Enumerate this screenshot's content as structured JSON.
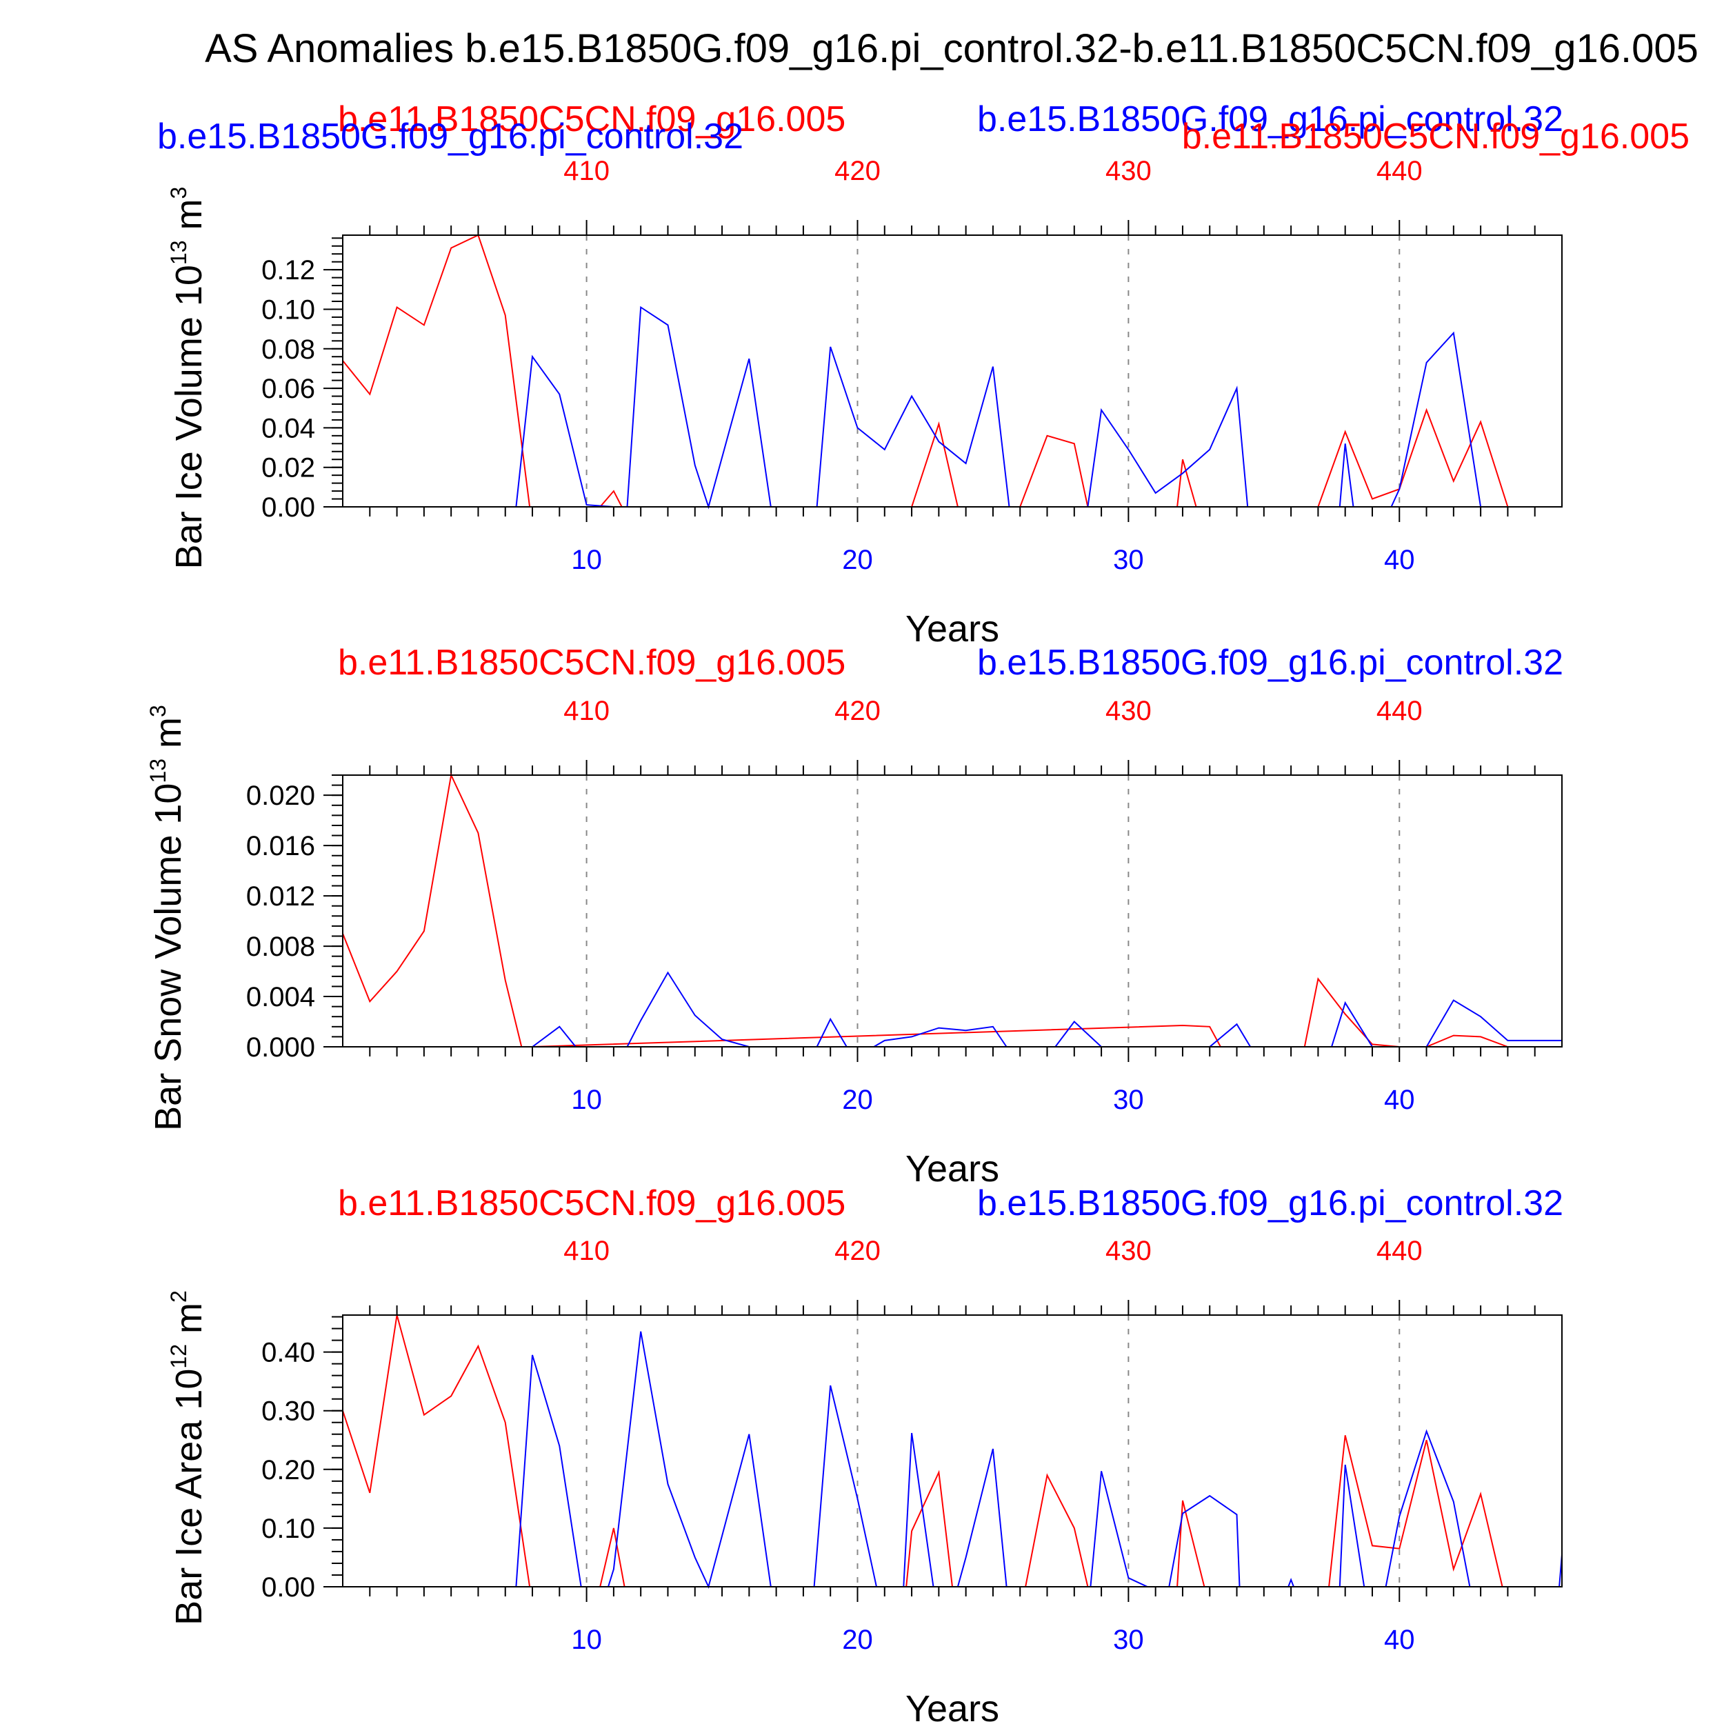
{
  "figure": {
    "title": "AS Anomalies b.e15.B1850G.f09_g16.pi_control.32-b.e11.B1850C5CN.f09_g16.005"
  },
  "colors": {
    "blue": "#0000ff",
    "red": "#ff0000"
  },
  "chart_data": [
    {
      "type": "line",
      "ylabel": "Bar Ice Volume 10",
      "ylabel_exp": "13",
      "ylabel_unit": " m",
      "ylabel_unit_exp": "3",
      "xlabel": "Years",
      "ylim": [
        0,
        0.1375
      ],
      "yticks": [
        0.0,
        0.02,
        0.04,
        0.06,
        0.08,
        0.1,
        0.12
      ],
      "ytick_labels": [
        "0.00",
        "0.02",
        "0.04",
        "0.06",
        "0.08",
        "0.10",
        "0.12"
      ],
      "xlim": [
        1,
        46
      ],
      "bottom_ticks": [
        10,
        20,
        30,
        40
      ],
      "top_ticks": [
        410,
        420,
        430,
        440
      ],
      "subtitles": [
        {
          "text": "b.e11.B1850C5CN.f09_g16.005",
          "color": "red",
          "anchor": "start",
          "x": 490,
          "y": 190
        },
        {
          "text": "b.e15.B1850G.f09_g16.pi_control.32",
          "color": "blue",
          "anchor": "end",
          "x": 2267,
          "y": 190
        },
        {
          "text": "b.e15.B1850G.f09_g16.pi_control.32",
          "color": "blue",
          "anchor": "start",
          "x": 228,
          "y": 215
        },
        {
          "text": "b.e11.B1850C5CN.f09_g16.005",
          "color": "red",
          "anchor": "end",
          "x": 2450,
          "y": 215
        }
      ],
      "series": [
        {
          "color": "red",
          "x": [
            1,
            2,
            3,
            4,
            5,
            6,
            7,
            7.9,
            8,
            10,
            10.5,
            11,
            11.3,
            12,
            21,
            22,
            23,
            23.7,
            24,
            26,
            27,
            28,
            28.5,
            31,
            31.8,
            32,
            32.5,
            37,
            38,
            39,
            40,
            41,
            42,
            43,
            44,
            46
          ],
          "y": [
            0.074,
            0.057,
            0.101,
            0.092,
            0.131,
            0.138,
            0.097,
            0,
            0,
            0,
            0,
            0.008,
            0,
            0,
            0,
            0,
            0.042,
            0,
            0,
            0,
            0.036,
            0.032,
            0,
            0,
            0,
            0.024,
            0,
            0,
            0.038,
            0.004,
            0.009,
            0.049,
            0.013,
            0.043,
            0,
            0
          ]
        },
        {
          "color": "blue",
          "x": [
            1,
            7.4,
            8,
            9,
            10,
            11,
            11.5,
            12,
            13,
            14,
            14.5,
            16,
            16.8,
            18.5,
            19,
            20,
            21,
            22,
            23,
            24,
            25,
            25.6,
            28.5,
            29,
            30,
            31,
            32,
            33,
            34,
            34.4,
            37.8,
            38,
            38.3,
            39.7,
            40,
            41,
            42,
            43,
            46
          ],
          "y": [
            0,
            0,
            0.076,
            0.057,
            0.001,
            0,
            0,
            0.101,
            0.092,
            0.021,
            0,
            0.075,
            0,
            0,
            0.081,
            0.04,
            0.029,
            0.056,
            0.033,
            0.022,
            0.071,
            0,
            0,
            0.049,
            0.029,
            0.007,
            0.017,
            0.029,
            0.06,
            0,
            0,
            0.032,
            0,
            0,
            0.009,
            0.073,
            0.088,
            0,
            0
          ]
        }
      ]
    },
    {
      "type": "line",
      "ylabel": "Bar Snow Volume 10",
      "ylabel_exp": "13",
      "ylabel_unit": " m",
      "ylabel_unit_exp": "3",
      "xlabel": "Years",
      "ylim": [
        0,
        0.0216
      ],
      "yticks": [
        0,
        0.004,
        0.008,
        0.012,
        0.016,
        0.02
      ],
      "ytick_labels": [
        "0.000",
        "0.004",
        "0.008",
        "0.012",
        "0.016",
        "0.020"
      ],
      "xlim": [
        1,
        46
      ],
      "bottom_ticks": [
        10,
        20,
        30,
        40
      ],
      "top_ticks": [
        410,
        420,
        430,
        440
      ],
      "subtitles": [
        {
          "text": "b.e11.B1850C5CN.f09_g16.005",
          "color": "red",
          "anchor": "start",
          "x": 490,
          "y": 978
        },
        {
          "text": "b.e15.B1850G.f09_g16.pi_control.32",
          "color": "blue",
          "anchor": "end",
          "x": 2267,
          "y": 978
        }
      ],
      "series": [
        {
          "color": "red",
          "x": [
            1,
            2,
            3,
            4,
            5,
            6,
            7,
            7.6,
            8,
            32,
            33,
            33.4,
            36.5,
            37,
            38,
            39,
            40,
            41,
            42,
            43,
            44,
            46
          ],
          "y": [
            0.009,
            0.0036,
            0.006,
            0.0092,
            0.0216,
            0.017,
            0.0053,
            0,
            0,
            0.0017,
            0.0016,
            0,
            0,
            0.0054,
            0.0026,
            0.0002,
            0,
            0,
            0.0009,
            0.0008,
            0,
            0
          ]
        },
        {
          "color": "blue",
          "x": [
            1,
            8,
            9,
            9.6,
            11.5,
            12,
            13,
            14,
            15,
            16,
            18.5,
            19,
            19.6,
            20.6,
            21,
            22,
            23,
            24,
            25,
            25.5,
            27.3,
            28,
            29,
            30,
            33,
            34,
            34.5,
            37.5,
            38,
            39,
            40,
            41,
            42,
            43,
            44,
            46
          ],
          "y": [
            0,
            0,
            0.0016,
            0,
            0,
            0.0021,
            0.0059,
            0.0025,
            0.0006,
            0,
            0,
            0.0022,
            0,
            0,
            0.0005,
            0.0008,
            0.0015,
            0.0013,
            0.0016,
            0,
            0,
            0.002,
            0,
            0,
            0,
            0.0018,
            0,
            0,
            0.0035,
            0,
            0,
            0,
            0.0037,
            0.0024,
            0.0005,
            0.0005
          ]
        }
      ]
    },
    {
      "type": "line",
      "ylabel": "Bar Ice Area 10",
      "ylabel_exp": "12",
      "ylabel_unit": " m",
      "ylabel_unit_exp": "2",
      "xlabel": "Years",
      "ylim": [
        0,
        0.463
      ],
      "yticks": [
        0,
        0.1,
        0.2,
        0.3,
        0.4
      ],
      "ytick_labels": [
        "0.00",
        "0.10",
        "0.20",
        "0.30",
        "0.40"
      ],
      "xlim": [
        1,
        46
      ],
      "bottom_ticks": [
        10,
        20,
        30,
        40
      ],
      "top_ticks": [
        410,
        420,
        430,
        440
      ],
      "subtitles": [
        {
          "text": "b.e11.B1850C5CN.f09_g16.005",
          "color": "red",
          "anchor": "start",
          "x": 490,
          "y": 1762
        },
        {
          "text": "b.e15.B1850G.f09_g16.pi_control.32",
          "color": "blue",
          "anchor": "end",
          "x": 2267,
          "y": 1762
        }
      ],
      "series": [
        {
          "color": "red",
          "x": [
            1,
            2,
            3,
            4,
            5,
            6,
            7,
            7.9,
            8,
            10.5,
            11,
            11.4,
            21.8,
            22,
            23,
            23.5,
            26.2,
            27,
            28,
            28.5,
            31.8,
            32,
            32.8,
            37.4,
            38,
            39,
            40,
            41,
            42,
            43,
            43.8,
            46
          ],
          "y": [
            0.3,
            0.16,
            0.463,
            0.293,
            0.325,
            0.41,
            0.28,
            0,
            0,
            0,
            0.1,
            0,
            0,
            0.095,
            0.195,
            0,
            0,
            0.19,
            0.1,
            0,
            0,
            0.147,
            0,
            0,
            0.258,
            0.07,
            0.065,
            0.25,
            0.03,
            0.158,
            0,
            0
          ]
        },
        {
          "color": "blue",
          "x": [
            1,
            7.4,
            8,
            9,
            9.8,
            10.8,
            11,
            12,
            13,
            14,
            14.5,
            16,
            16.8,
            18.4,
            19,
            20,
            20.7,
            21.7,
            22,
            22.8,
            23.7,
            24,
            25,
            25.5,
            28.6,
            29,
            30,
            30.7,
            31.5,
            32,
            33,
            34,
            34.1,
            35.9,
            36,
            36.1,
            37.8,
            38,
            38.7,
            39.5,
            40,
            41,
            42,
            42.6,
            45.9,
            46
          ],
          "y": [
            0,
            0,
            0.395,
            0.24,
            0,
            0,
            0.03,
            0.435,
            0.175,
            0.05,
            0,
            0.26,
            0,
            0,
            0.343,
            0.15,
            0,
            0,
            0.262,
            0,
            0,
            0.05,
            0.235,
            0,
            0,
            0.197,
            0.015,
            0,
            0,
            0.125,
            0.155,
            0.123,
            0,
            0,
            0.012,
            0,
            0,
            0.208,
            0,
            0,
            0.12,
            0.265,
            0.145,
            0,
            0,
            0.055
          ]
        }
      ]
    }
  ]
}
